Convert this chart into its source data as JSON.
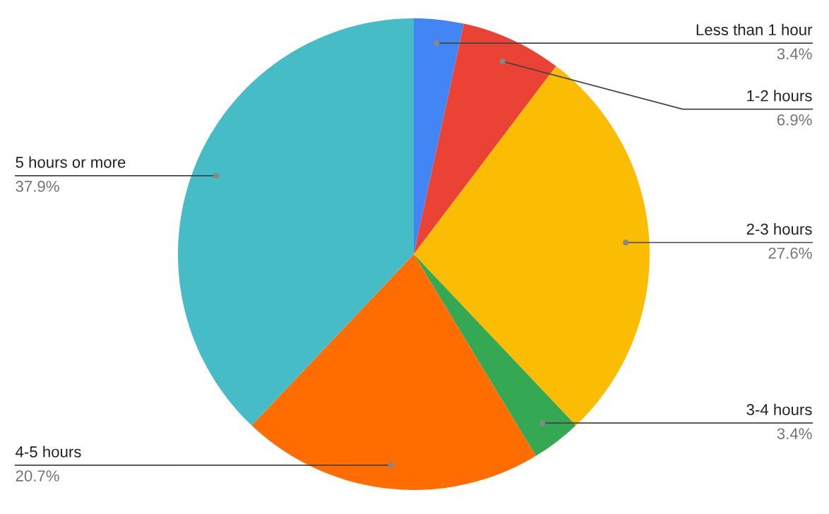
{
  "chart_data": {
    "type": "pie",
    "categories": [
      "Less than 1 hour",
      "1-2 hours",
      "2-3 hours",
      "3-4 hours",
      "4-5 hours",
      "5 hours or more"
    ],
    "values": [
      3.4,
      6.9,
      27.6,
      3.4,
      20.7,
      37.9
    ],
    "colors": [
      "#4285f4",
      "#ea4335",
      "#fbbc04",
      "#34a853",
      "#ff6d01",
      "#46bdc6"
    ],
    "value_labels": [
      "3.4%",
      "6.9%",
      "27.6%",
      "3.4%",
      "20.7%",
      "37.9%"
    ]
  }
}
